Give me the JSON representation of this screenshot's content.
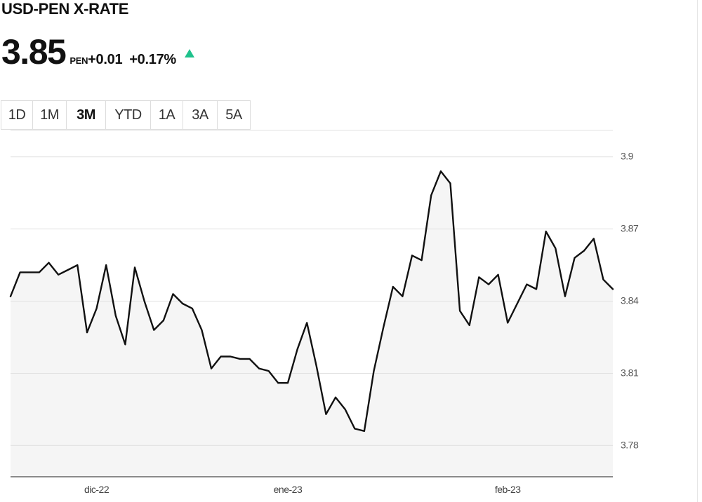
{
  "header": {
    "title": "USD-PEN X-RATE",
    "price": "3.85",
    "currency": "PEN",
    "change": "+0.01",
    "change_pct": "+0.17%",
    "direction_icon": "triangle-up-icon",
    "up_color": "#1fc28c"
  },
  "tabs": [
    {
      "label": "1D",
      "active": false
    },
    {
      "label": "1M",
      "active": false
    },
    {
      "label": "3M",
      "active": true
    },
    {
      "label": "YTD",
      "active": false
    },
    {
      "label": "1A",
      "active": false
    },
    {
      "label": "3A",
      "active": false
    },
    {
      "label": "5A",
      "active": false
    }
  ],
  "chart_data": {
    "type": "area",
    "title": "",
    "xlabel": "",
    "ylabel": "",
    "ylim": [
      3.767,
      3.911
    ],
    "y_ticks": [
      3.78,
      3.81,
      3.84,
      3.87,
      3.9
    ],
    "y_tick_labels": [
      "3.78",
      "3.81",
      "3.84",
      "3.87",
      "3.9"
    ],
    "x_ticks": [
      {
        "label": "dic-22",
        "index": 9
      },
      {
        "label": "ene-23",
        "index": 29
      },
      {
        "label": "feb-23",
        "index": 52
      }
    ],
    "grid": true,
    "line_color": "#111111",
    "fill_color": "#f5f5f5",
    "series": [
      {
        "values": [
          3.842,
          3.852,
          3.852,
          3.852,
          3.856,
          3.851,
          3.853,
          3.855,
          3.827,
          3.837,
          3.855,
          3.834,
          3.822,
          3.854,
          3.84,
          3.828,
          3.832,
          3.843,
          3.839,
          3.837,
          3.828,
          3.812,
          3.817,
          3.817,
          3.816,
          3.816,
          3.812,
          3.811,
          3.806,
          3.806,
          3.82,
          3.831,
          3.813,
          3.793,
          3.8,
          3.795,
          3.787,
          3.786,
          3.811,
          3.829,
          3.846,
          3.842,
          3.859,
          3.857,
          3.884,
          3.894,
          3.889,
          3.836,
          3.83,
          3.85,
          3.847,
          3.851,
          3.831,
          3.839,
          3.847,
          3.845,
          3.869,
          3.862,
          3.842,
          3.858,
          3.861,
          3.866,
          3.849,
          3.845
        ]
      }
    ]
  }
}
